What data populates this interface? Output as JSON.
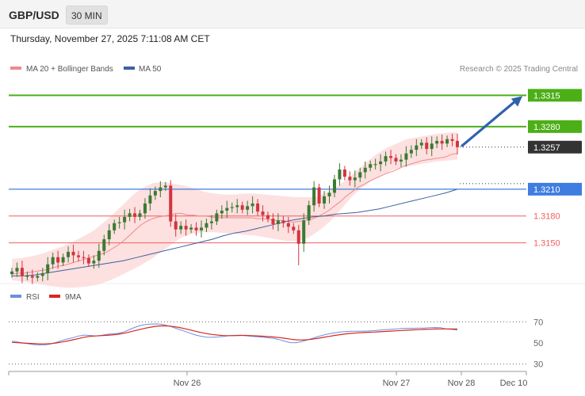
{
  "header": {
    "symbol": "GBP/USD",
    "timeframe": "30 MIN",
    "datetime": "Thursday, November 27, 2025 7:11:08 AM CET"
  },
  "legend": {
    "ma20": "MA 20 + Bollinger Bands",
    "ma50": "MA 50",
    "credit": "Research © 2025 Trading Central",
    "rsi": "RSI",
    "rsi_ma": "9MA"
  },
  "colors": {
    "green": "#4caf18",
    "blue": "#3f7de0",
    "red": "#ef5f5f",
    "dark": "#333333",
    "bull": "#3b7a31",
    "bear": "#d3343f",
    "ma20": "#f08a8a",
    "ma50": "#3c62a0",
    "band": "#fcd6d6",
    "arrow": "#2d62ad",
    "rsi": "#6b8fe0",
    "rsi_ma": "#d9261f"
  },
  "chart_data": [
    {
      "type": "candlestick",
      "ylim": [
        1.3116,
        1.3333
      ],
      "levels": [
        {
          "value": 1.3315,
          "label": "1.3315",
          "style": "resistance"
        },
        {
          "value": 1.328,
          "label": "1.3280",
          "style": "resistance"
        },
        {
          "value": 1.3257,
          "label": "1.3257",
          "style": "current"
        },
        {
          "value": 1.321,
          "label": "1.3210",
          "style": "pivot"
        },
        {
          "value": 1.318,
          "label": "1.3180",
          "style": "support"
        },
        {
          "value": 1.315,
          "label": "1.3150",
          "style": "support"
        }
      ],
      "candles_close": [
        1.3118,
        1.3122,
        1.3113,
        1.3113,
        1.3111,
        1.3113,
        1.3116,
        1.3126,
        1.3134,
        1.3128,
        1.3134,
        1.314,
        1.3136,
        1.3134,
        1.3133,
        1.3127,
        1.313,
        1.3141,
        1.3154,
        1.3164,
        1.3172,
        1.3173,
        1.3179,
        1.3183,
        1.3179,
        1.3183,
        1.3194,
        1.3203,
        1.3208,
        1.3212,
        1.3214,
        1.3174,
        1.3165,
        1.3169,
        1.3165,
        1.3167,
        1.3164,
        1.3167,
        1.3172,
        1.3174,
        1.3183,
        1.3186,
        1.3189,
        1.319,
        1.3192,
        1.3187,
        1.3191,
        1.3194,
        1.3185,
        1.3181,
        1.3177,
        1.3171,
        1.3175,
        1.3172,
        1.3168,
        1.3164,
        1.3149,
        1.3175,
        1.3192,
        1.3212,
        1.3194,
        1.3202,
        1.3206,
        1.3221,
        1.3232,
        1.3224,
        1.322,
        1.3223,
        1.3229,
        1.3234,
        1.3238,
        1.3238,
        1.3241,
        1.3247,
        1.3245,
        1.3241,
        1.3243,
        1.325,
        1.3254,
        1.3259,
        1.3262,
        1.3255,
        1.3261,
        1.3264,
        1.3261,
        1.3266,
        1.3264,
        1.3257
      ],
      "ma20": [
        1.3115,
        1.3116,
        1.3116,
        1.3117,
        1.3118,
        1.3119,
        1.312,
        1.3122,
        1.3124,
        1.3125,
        1.3127,
        1.3129,
        1.3131,
        1.3133,
        1.3135,
        1.3137,
        1.3139,
        1.3143,
        1.3147,
        1.3152,
        1.3158,
        1.3164,
        1.317,
        1.3174,
        1.3177,
        1.3179,
        1.318,
        1.3181,
        1.3183,
        1.3183,
        1.3181,
        1.3181,
        1.318,
        1.318,
        1.3179,
        1.3178,
        1.3178,
        1.3178,
        1.3178,
        1.3178,
        1.3178,
        1.3178,
        1.3177,
        1.3177,
        1.3176,
        1.3175,
        1.3175,
        1.3174,
        1.3173,
        1.3174,
        1.3175,
        1.3176,
        1.3179,
        1.3182,
        1.3186,
        1.3191,
        1.3196,
        1.3202,
        1.3207,
        1.3212,
        1.3215,
        1.3219,
        1.3222,
        1.3225,
        1.3228,
        1.323,
        1.3233,
        1.3236,
        1.3238,
        1.324,
        1.3242,
        1.3243,
        1.3244,
        1.3245,
        1.3246,
        1.3249,
        1.325
      ],
      "ma50": [
        1.3113,
        1.3113,
        1.3114,
        1.3116,
        1.3118,
        1.312,
        1.3122,
        1.3124,
        1.3126,
        1.3128,
        1.313,
        1.3133,
        1.3136,
        1.3139,
        1.3142,
        1.3145,
        1.3148,
        1.3151,
        1.3154,
        1.3158,
        1.3161,
        1.3163,
        1.3166,
        1.3169,
        1.3172,
        1.3175,
        1.3177,
        1.3179,
        1.318,
        1.3182,
        1.3183,
        1.3184,
        1.3186,
        1.3188,
        1.3191,
        1.3194,
        1.3197,
        1.32,
        1.3203,
        1.3206,
        1.321
      ],
      "bb_upper": [
        1.3132,
        1.3133,
        1.3135,
        1.3138,
        1.3142,
        1.3146,
        1.3151,
        1.3157,
        1.3163,
        1.3172,
        1.3182,
        1.3193,
        1.3204,
        1.3212,
        1.3217,
        1.3218,
        1.3216,
        1.3214,
        1.3211,
        1.3207,
        1.3205,
        1.3204,
        1.3204,
        1.3205,
        1.3205,
        1.3204,
        1.3203,
        1.3202,
        1.3201,
        1.3201,
        1.3201,
        1.3206,
        1.3212,
        1.322,
        1.323,
        1.324,
        1.3249,
        1.3256,
        1.3261,
        1.3266,
        1.3268,
        1.327,
        1.3272,
        1.3273,
        1.3274
      ],
      "bb_lower": [
        1.3108,
        1.3107,
        1.3105,
        1.3103,
        1.3101,
        1.31,
        1.31,
        1.3101,
        1.3103,
        1.3107,
        1.3112,
        1.3118,
        1.3124,
        1.3131,
        1.3139,
        1.3148,
        1.3156,
        1.316,
        1.3162,
        1.3162,
        1.3161,
        1.316,
        1.3159,
        1.3158,
        1.3156,
        1.3154,
        1.3152,
        1.3152,
        1.3156,
        1.3164,
        1.3174,
        1.3187,
        1.3201,
        1.3212,
        1.322,
        1.3227,
        1.3232,
        1.3235,
        1.3237,
        1.3239,
        1.3241,
        1.3242,
        1.3243
      ],
      "projection": {
        "from": 1.3257,
        "to": 1.3315
      }
    },
    {
      "type": "line",
      "name": "RSI panel",
      "ylim": [
        26,
        86
      ],
      "yticks": [
        70,
        50,
        30
      ],
      "series": [
        {
          "name": "RSI",
          "values": [
            51.8,
            50.9,
            49.9,
            49.2,
            48.4,
            48.1,
            48.2,
            49,
            50.6,
            52.4,
            53.8,
            55,
            56.6,
            57.4,
            57.1,
            56.5,
            57.1,
            58,
            58.6,
            59.1,
            60.3,
            62.4,
            64.6,
            66.4,
            67.4,
            67.9,
            68,
            67.6,
            66.3,
            64.7,
            62.8,
            61.1,
            59.2,
            57.5,
            56.3,
            55.5,
            55.3,
            55.6,
            56.2,
            56.8,
            57.2,
            57.3,
            56.8,
            56.3,
            55.9,
            55.4,
            54.9,
            54.3,
            53.2,
            51.6,
            50.3,
            50.2,
            51.2,
            52.8,
            54.4,
            56.1,
            57.5,
            58.7,
            59.6,
            60.4,
            60.8,
            61,
            61.1,
            61.2,
            61.3,
            61.6,
            62.1,
            62.5,
            62.8,
            63.2,
            63.7,
            63.9,
            63.9,
            64,
            64.1,
            64.5,
            64.6,
            64.5,
            63.2,
            62.8,
            62.2
          ]
        },
        {
          "name": "9MA",
          "values": [
            50.5,
            50.2,
            49.9,
            49.6,
            49.3,
            49.1,
            49.1,
            49.4,
            50,
            50.9,
            51.9,
            53,
            54.2,
            55.4,
            56.2,
            56.6,
            56.9,
            57.2,
            57.6,
            58.2,
            59.1,
            60.2,
            61.5,
            62.8,
            64,
            65,
            65.8,
            66.2,
            66.1,
            65.5,
            64.7,
            63.6,
            62.3,
            61,
            59.8,
            58.8,
            58,
            57.4,
            57,
            56.9,
            56.9,
            57.1,
            57.1,
            56.9,
            56.7,
            56.4,
            56,
            55.6,
            55.1,
            54.4,
            53.6,
            53,
            52.8,
            53,
            53.6,
            54.4,
            55.3,
            56.2,
            57.1,
            57.9,
            58.6,
            59.1,
            59.5,
            59.8,
            60.1,
            60.3,
            60.6,
            60.9,
            61.2,
            61.5,
            61.8,
            62.1,
            62.4,
            62.6,
            62.8,
            63,
            63.2,
            63.3,
            63.3,
            63.2,
            63.1
          ]
        }
      ]
    }
  ],
  "xaxis": {
    "ticks": [
      "Nov 26",
      "Nov 27",
      "Nov 28",
      "Dec 10"
    ]
  }
}
